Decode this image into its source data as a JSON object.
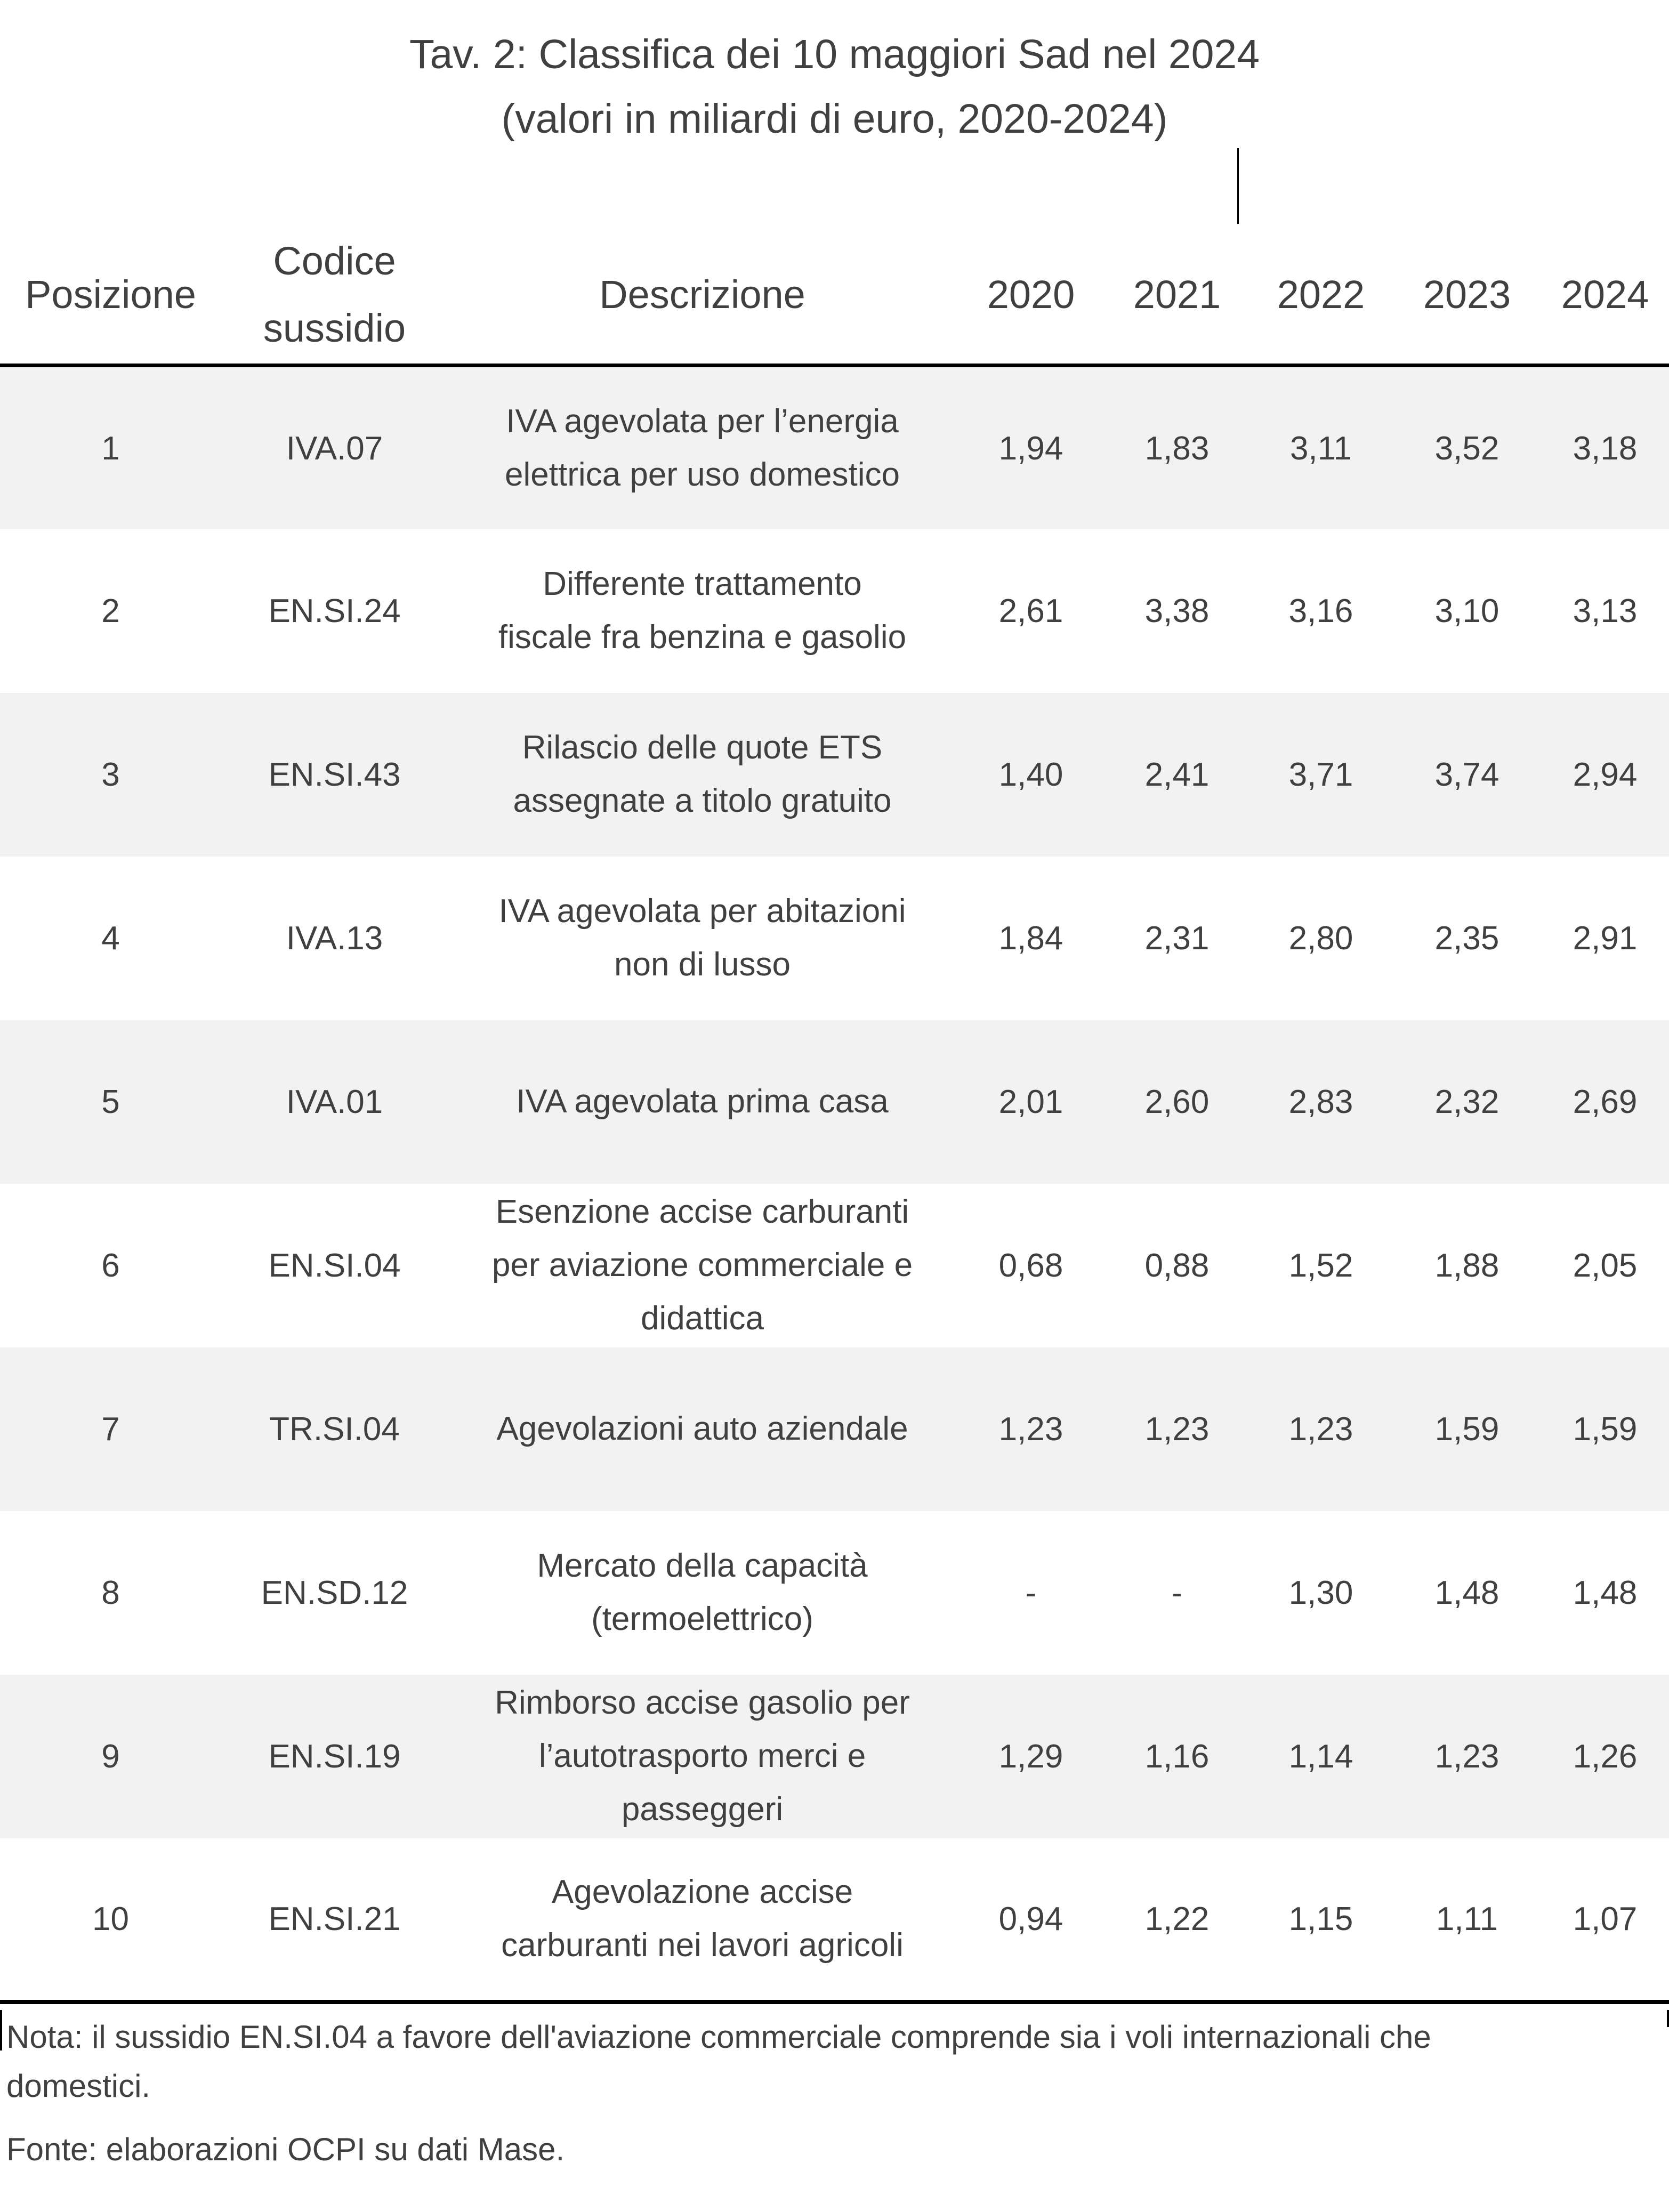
{
  "title": {
    "line1": "Tav. 2: Classifica dei 10 maggiori Sad nel 2024",
    "line2": "(valori in miliardi di euro, 2020-2024)"
  },
  "table": {
    "headers": [
      "Posizione",
      "Codice sussidio",
      "Descrizione",
      "2020",
      "2021",
      "2022",
      "2023",
      "2024"
    ],
    "rows": [
      {
        "posizione": "1",
        "codice": "IVA.07",
        "descrizione": "IVA agevolata per l’energia\nelettrica per uso domestico",
        "values": [
          "1,94",
          "1,83",
          "3,11",
          "3,52",
          "3,18"
        ]
      },
      {
        "posizione": "2",
        "codice": "EN.SI.24",
        "descrizione": "Differente trattamento\nfiscale fra benzina e gasolio",
        "values": [
          "2,61",
          "3,38",
          "3,16",
          "3,10",
          "3,13"
        ]
      },
      {
        "posizione": "3",
        "codice": "EN.SI.43",
        "descrizione": "Rilascio delle quote ETS\nassegnate a titolo gratuito",
        "values": [
          "1,40",
          "2,41",
          "3,71",
          "3,74",
          "2,94"
        ]
      },
      {
        "posizione": "4",
        "codice": "IVA.13",
        "descrizione": "IVA agevolata per abitazioni\nnon di lusso",
        "values": [
          "1,84",
          "2,31",
          "2,80",
          "2,35",
          "2,91"
        ]
      },
      {
        "posizione": "5",
        "codice": "IVA.01",
        "descrizione": "IVA agevolata prima casa",
        "values": [
          "2,01",
          "2,60",
          "2,83",
          "2,32",
          "2,69"
        ]
      },
      {
        "posizione": "6",
        "codice": "EN.SI.04",
        "descrizione": "Esenzione accise carburanti\nper aviazione commerciale e\ndidattica",
        "values": [
          "0,68",
          "0,88",
          "1,52",
          "1,88",
          "2,05"
        ]
      },
      {
        "posizione": "7",
        "codice": "TR.SI.04",
        "descrizione": "Agevolazioni auto aziendale",
        "values": [
          "1,23",
          "1,23",
          "1,23",
          "1,59",
          "1,59"
        ]
      },
      {
        "posizione": "8",
        "codice": "EN.SD.12",
        "descrizione": "Mercato della capacità\n(termoelettrico)",
        "values": [
          "-",
          "-",
          "1,30",
          "1,48",
          "1,48"
        ]
      },
      {
        "posizione": "9",
        "codice": "EN.SI.19",
        "descrizione": "Rimborso accise gasolio per\nl’autotrasporto merci e\npasseggeri",
        "values": [
          "1,29",
          "1,16",
          "1,14",
          "1,23",
          "1,26"
        ]
      },
      {
        "posizione": "10",
        "codice": "EN.SI.21",
        "descrizione": "Agevolazione accise\ncarburanti nei lavori agricoli",
        "values": [
          "0,94",
          "1,22",
          "1,15",
          "1,11",
          "1,07"
        ]
      }
    ]
  },
  "notes": {
    "nota": "Nota: il sussidio EN.SI.04  a favore dell'aviazione commerciale comprende sia i voli internazionali che\ndomestici.",
    "fonte": "Fonte: elaborazioni OCPI su dati Mase."
  },
  "colors": {
    "row_stripe": "#f2f2f2",
    "text": "#404040",
    "border": "#000000"
  }
}
